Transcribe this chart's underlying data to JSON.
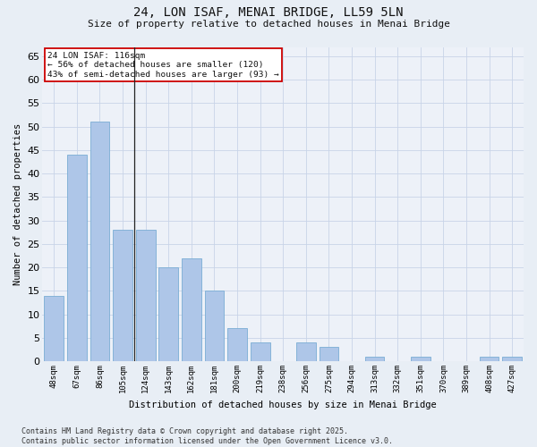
{
  "title": "24, LON ISAF, MENAI BRIDGE, LL59 5LN",
  "subtitle": "Size of property relative to detached houses in Menai Bridge",
  "xlabel": "Distribution of detached houses by size in Menai Bridge",
  "ylabel": "Number of detached properties",
  "categories": [
    "48sqm",
    "67sqm",
    "86sqm",
    "105sqm",
    "124sqm",
    "143sqm",
    "162sqm",
    "181sqm",
    "200sqm",
    "219sqm",
    "238sqm",
    "256sqm",
    "275sqm",
    "294sqm",
    "313sqm",
    "332sqm",
    "351sqm",
    "370sqm",
    "389sqm",
    "408sqm",
    "427sqm"
  ],
  "values": [
    14,
    44,
    51,
    28,
    28,
    20,
    22,
    15,
    7,
    4,
    0,
    4,
    3,
    0,
    1,
    0,
    1,
    0,
    0,
    1,
    1
  ],
  "bar_color": "#aec6e8",
  "bar_edge_color": "#7aadd4",
  "ylim": [
    0,
    67
  ],
  "yticks": [
    0,
    5,
    10,
    15,
    20,
    25,
    30,
    35,
    40,
    45,
    50,
    55,
    60,
    65
  ],
  "vline_x": 3.5,
  "annotation_title": "24 LON ISAF: 116sqm",
  "annotation_line1": "← 56% of detached houses are smaller (120)",
  "annotation_line2": "43% of semi-detached houses are larger (93) →",
  "footer_line1": "Contains HM Land Registry data © Crown copyright and database right 2025.",
  "footer_line2": "Contains public sector information licensed under the Open Government Licence v3.0.",
  "bg_color": "#e8eef5",
  "plot_bg_color": "#edf1f8",
  "grid_color": "#c8d4e8"
}
